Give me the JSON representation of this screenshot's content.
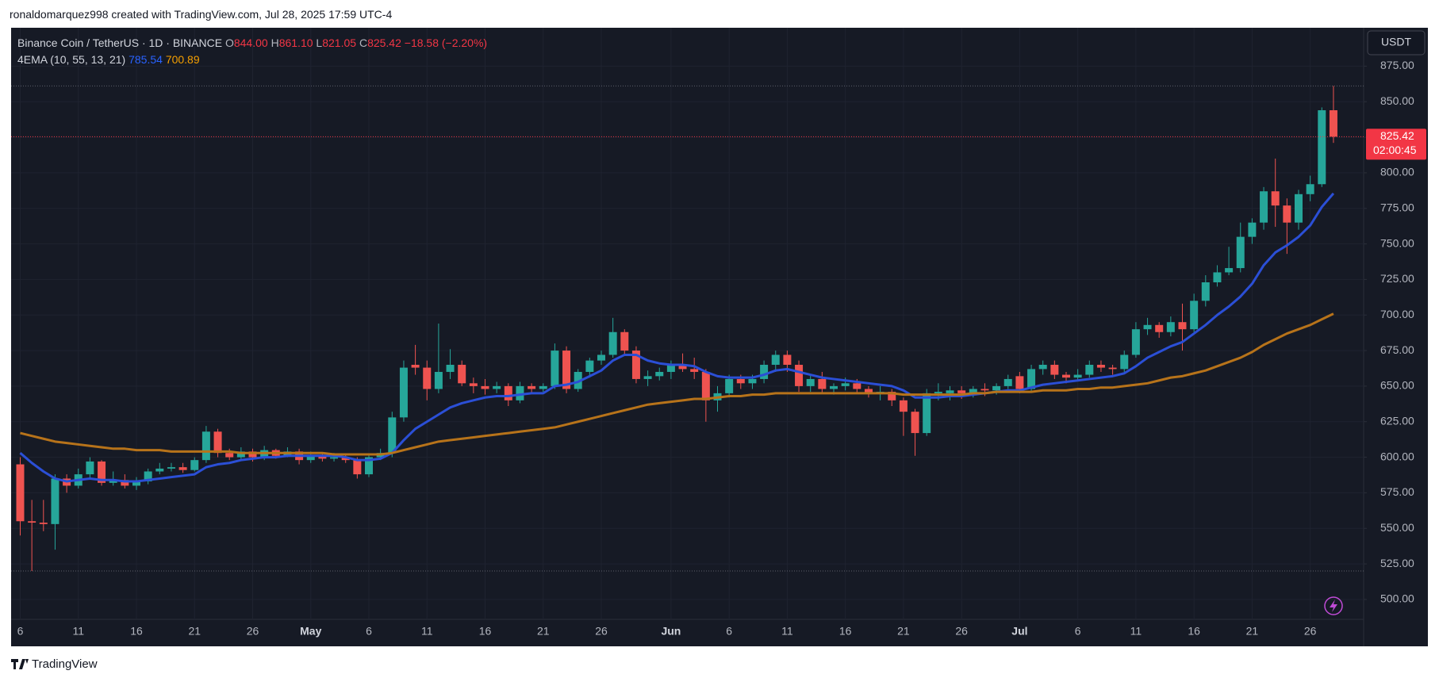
{
  "chart_data": {
    "type": "candlestick",
    "attribution": "ronaldomarquez998 created with TradingView.com, Jul 28, 2025 17:59 UTC-4",
    "symbol": "Binance Coin / TetherUS · 1D · BINANCE",
    "ohlc_legend": [
      {
        "label": "O",
        "value": "844.00"
      },
      {
        "label": "H",
        "value": "861.10"
      },
      {
        "label": "L",
        "value": "821.05"
      },
      {
        "label": "C",
        "value": "825.42"
      }
    ],
    "change": "−18.58 (−2.20%)",
    "indicator": {
      "name": "4EMA (10, 55, 13, 21)",
      "values": [
        "785.54",
        "700.89"
      ]
    },
    "currency": "USDT",
    "last_price_label": "825.42",
    "countdown": "02:00:45",
    "up_color": "#26a69a",
    "down_color": "#ef5350",
    "ylim": [
      486,
      902
    ],
    "yticks": [
      {
        "value": 500,
        "label": "500.00"
      },
      {
        "value": 525,
        "label": "525.00"
      },
      {
        "value": 550,
        "label": "550.00"
      },
      {
        "value": 575,
        "label": "575.00"
      },
      {
        "value": 600,
        "label": "600.00"
      },
      {
        "value": 625,
        "label": "625.00"
      },
      {
        "value": 650,
        "label": "650.00"
      },
      {
        "value": 675,
        "label": "675.00"
      },
      {
        "value": 700,
        "label": "700.00"
      },
      {
        "value": 725,
        "label": "725.00"
      },
      {
        "value": 750,
        "label": "750.00"
      },
      {
        "value": 775,
        "label": "775.00"
      },
      {
        "value": 800,
        "label": "800.00"
      },
      {
        "value": 825,
        "label": "825.00"
      },
      {
        "value": 850,
        "label": "850.00"
      },
      {
        "value": 875,
        "label": "875.00"
      }
    ],
    "grid": true,
    "categories": [
      "6",
      null,
      null,
      null,
      null,
      "11",
      null,
      null,
      null,
      null,
      "16",
      null,
      null,
      null,
      null,
      "21",
      null,
      null,
      null,
      null,
      "26",
      null,
      null,
      null,
      null,
      "May",
      null,
      null,
      null,
      null,
      "6",
      null,
      null,
      null,
      null,
      "11",
      null,
      null,
      null,
      null,
      "16",
      null,
      null,
      null,
      null,
      "21",
      null,
      null,
      null,
      null,
      "26",
      null,
      null,
      null,
      null,
      null,
      "Jun",
      null,
      null,
      null,
      null,
      "6",
      null,
      null,
      null,
      null,
      "11",
      null,
      null,
      null,
      null,
      "16",
      null,
      null,
      null,
      null,
      "21",
      null,
      null,
      null,
      null,
      "26",
      null,
      null,
      null,
      null,
      "Jul",
      null,
      null,
      null,
      null,
      "6",
      null,
      null,
      null,
      null,
      "11",
      null,
      null,
      null,
      null,
      "16",
      null,
      null,
      null,
      null,
      "21",
      null,
      null,
      null,
      null,
      "26",
      null,
      null
    ],
    "open": [
      595,
      555,
      554,
      553,
      585,
      580,
      588,
      597,
      582,
      584,
      580,
      583,
      590,
      592,
      593,
      591,
      598,
      618,
      603,
      600,
      604,
      600,
      605,
      601,
      604,
      598,
      601,
      599,
      600,
      598,
      588,
      600,
      603,
      628,
      665,
      663,
      648,
      660,
      665,
      652,
      650,
      648,
      650,
      640,
      650,
      648,
      650,
      675,
      648,
      660,
      668,
      672,
      688,
      675,
      655,
      657,
      660,
      665,
      662,
      660,
      640,
      645,
      655,
      652,
      655,
      665,
      672,
      665,
      650,
      655,
      648,
      650,
      652,
      648,
      645,
      646,
      640,
      632,
      617,
      645,
      645,
      647,
      645,
      648,
      647,
      650,
      657,
      648,
      662,
      665,
      658,
      656,
      658,
      665,
      663,
      662,
      672,
      690,
      693,
      688,
      695,
      690,
      710,
      723,
      730,
      733,
      755,
      765,
      787,
      777,
      765,
      785,
      792,
      844
    ],
    "high": [
      600,
      570,
      570,
      588,
      588,
      592,
      600,
      598,
      590,
      588,
      586,
      592,
      596,
      596,
      596,
      600,
      622,
      620,
      606,
      607,
      606,
      608,
      606,
      607,
      606,
      604,
      603,
      603,
      602,
      600,
      602,
      606,
      632,
      668,
      679,
      668,
      694,
      676,
      668,
      656,
      655,
      653,
      652,
      653,
      652,
      652,
      680,
      678,
      662,
      670,
      675,
      698,
      690,
      678,
      661,
      663,
      668,
      673,
      670,
      662,
      650,
      658,
      658,
      658,
      668,
      675,
      675,
      668,
      658,
      660,
      652,
      656,
      655,
      650,
      650,
      648,
      642,
      634,
      648,
      652,
      650,
      650,
      650,
      652,
      652,
      658,
      660,
      665,
      668,
      668,
      660,
      662,
      668,
      668,
      665,
      675,
      695,
      698,
      695,
      699,
      708,
      715,
      728,
      735,
      748,
      765,
      768,
      790,
      810,
      782,
      788,
      798,
      846,
      861.1
    ],
    "low": [
      545,
      520,
      548,
      535,
      575,
      578,
      585,
      580,
      580,
      578,
      577,
      581,
      588,
      590,
      589,
      590,
      596,
      600,
      598,
      598,
      597,
      598,
      599,
      600,
      595,
      596,
      597,
      597,
      596,
      585,
      586,
      598,
      600,
      625,
      658,
      640,
      645,
      655,
      650,
      645,
      644,
      645,
      636,
      638,
      645,
      646,
      648,
      645,
      646,
      656,
      665,
      670,
      672,
      652,
      650,
      654,
      655,
      660,
      655,
      625,
      632,
      642,
      648,
      648,
      652,
      660,
      660,
      646,
      646,
      645,
      644,
      647,
      645,
      642,
      640,
      636,
      615,
      601,
      615,
      640,
      640,
      641,
      642,
      643,
      644,
      648,
      645,
      646,
      658,
      655,
      652,
      654,
      656,
      660,
      658,
      660,
      670,
      686,
      684,
      685,
      675,
      688,
      706,
      720,
      728,
      730,
      750,
      760,
      762,
      743,
      760,
      780,
      790,
      821.05
    ],
    "close": [
      555,
      554,
      553,
      585,
      580,
      588,
      597,
      582,
      584,
      580,
      583,
      590,
      592,
      593,
      591,
      598,
      618,
      603,
      600,
      604,
      600,
      605,
      601,
      604,
      598,
      601,
      599,
      600,
      598,
      588,
      600,
      603,
      628,
      663,
      663,
      648,
      660,
      665,
      652,
      650,
      648,
      650,
      640,
      650,
      648,
      650,
      675,
      648,
      660,
      668,
      672,
      688,
      675,
      655,
      657,
      660,
      665,
      662,
      660,
      640,
      645,
      655,
      652,
      655,
      665,
      672,
      665,
      650,
      655,
      648,
      650,
      652,
      648,
      645,
      646,
      640,
      632,
      617,
      645,
      646,
      647,
      645,
      648,
      647,
      650,
      655,
      648,
      662,
      665,
      658,
      656,
      658,
      665,
      663,
      662,
      672,
      690,
      693,
      688,
      695,
      690,
      710,
      723,
      730,
      733,
      755,
      765,
      787,
      777,
      765,
      785,
      792,
      844,
      825.42
    ],
    "series": [
      {
        "color": "#2b4fd6",
        "values": [
          603,
          596,
          590,
          585,
          583,
          584,
          585,
          584,
          584,
          583,
          583,
          584,
          585,
          586,
          587,
          588,
          593,
          595,
          596,
          598,
          599,
          600,
          600,
          601,
          601,
          601,
          601,
          601,
          600,
          598,
          598,
          599,
          603,
          612,
          620,
          625,
          630,
          635,
          638,
          640,
          642,
          643,
          643,
          644,
          645,
          645,
          650,
          651,
          653,
          657,
          661,
          668,
          672,
          672,
          668,
          666,
          665,
          665,
          664,
          660,
          657,
          656,
          656,
          656,
          658,
          661,
          662,
          660,
          658,
          656,
          655,
          654,
          653,
          652,
          651,
          650,
          647,
          642,
          642,
          642,
          643,
          643,
          644,
          645,
          646,
          647,
          647,
          649,
          651,
          652,
          653,
          654,
          655,
          656,
          657,
          659,
          664,
          670,
          674,
          678,
          681,
          687,
          693,
          700,
          706,
          713,
          722,
          735,
          744,
          749,
          755,
          763,
          776,
          785.54
        ]
      },
      {
        "color": "#b7731a",
        "values": [
          617,
          615,
          613,
          611,
          610,
          609,
          608,
          607,
          606,
          606,
          605,
          605,
          605,
          604,
          604,
          604,
          604,
          604,
          604,
          603,
          603,
          603,
          603,
          603,
          603,
          603,
          603,
          602,
          602,
          602,
          602,
          602,
          603,
          605,
          607,
          609,
          611,
          612,
          613,
          614,
          615,
          616,
          617,
          618,
          619,
          620,
          621,
          623,
          625,
          627,
          629,
          631,
          633,
          635,
          637,
          638,
          639,
          640,
          641,
          641,
          642,
          643,
          643,
          644,
          644,
          645,
          645,
          645,
          645,
          645,
          645,
          645,
          645,
          645,
          645,
          645,
          644,
          644,
          644,
          644,
          644,
          644,
          645,
          645,
          646,
          646,
          646,
          646,
          647,
          647,
          647,
          648,
          648,
          649,
          649,
          650,
          651,
          652,
          654,
          656,
          657,
          659,
          661,
          664,
          667,
          670,
          674,
          679,
          683,
          687,
          690,
          693,
          697,
          700.89
        ]
      }
    ]
  },
  "footer": {
    "brand": "TradingView"
  }
}
